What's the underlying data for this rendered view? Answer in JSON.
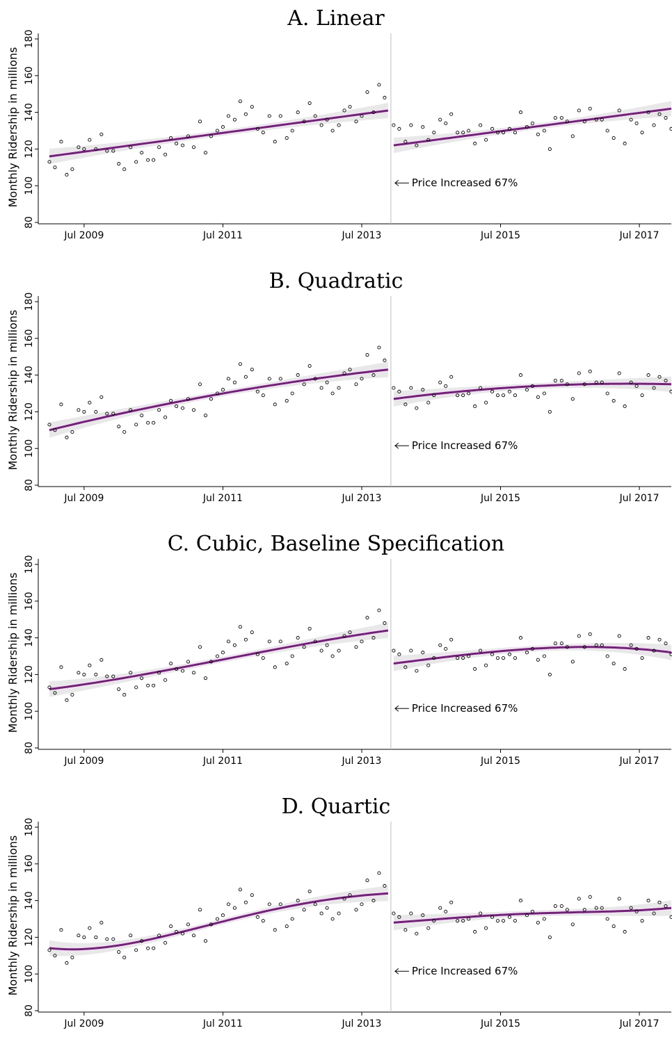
{
  "figure": {
    "ylabel": "Monthly Ridership in millions",
    "annotation": "Price Increased 67%",
    "yticks": [
      80,
      100,
      120,
      140,
      160,
      180
    ],
    "xticks": [
      {
        "x": 2009.5,
        "label": "Jul 2009"
      },
      {
        "x": 2011.5,
        "label": "Jul 2011"
      },
      {
        "x": 2013.5,
        "label": "Jul 2013"
      },
      {
        "x": 2015.5,
        "label": "Jul 2015"
      },
      {
        "x": 2017.5,
        "label": "Jul 2017"
      }
    ],
    "colors": {
      "fit": "#7b1b82",
      "ci": "#e8e8e8",
      "points": "#000000",
      "cutoff": "#bdbdbd"
    }
  },
  "chart_data": [
    {
      "type": "scatter",
      "title": "A. Linear",
      "ylabel": "Monthly Ridership in millions",
      "ylim": [
        80,
        180
      ],
      "xlim": [
        2008.92,
        2017.96
      ],
      "cutoff_x": 2013.92,
      "annotation": "Price Increased 67%",
      "fit_degree": 1,
      "fit_pre": [
        {
          "x": 2009.0,
          "y": 116
        },
        {
          "x": 2013.88,
          "y": 141
        }
      ],
      "fit_post": [
        {
          "x": 2013.96,
          "y": 122
        },
        {
          "x": 2017.96,
          "y": 142
        }
      ]
    },
    {
      "type": "scatter",
      "title": "B. Quadratic",
      "ylabel": "Monthly Ridership in millions",
      "ylim": [
        80,
        180
      ],
      "xlim": [
        2008.92,
        2017.96
      ],
      "cutoff_x": 2013.92,
      "annotation": "Price Increased 67%",
      "fit_degree": 2,
      "fit_pre": [
        {
          "x": 2009.0,
          "y": 110
        },
        {
          "x": 2011.5,
          "y": 130
        },
        {
          "x": 2013.88,
          "y": 143
        }
      ],
      "fit_post": [
        {
          "x": 2013.96,
          "y": 127
        },
        {
          "x": 2016.0,
          "y": 134
        },
        {
          "x": 2017.96,
          "y": 135
        }
      ]
    },
    {
      "type": "scatter",
      "title": "C. Cubic, Baseline Specification",
      "ylabel": "Monthly Ridership in millions",
      "ylim": [
        80,
        180
      ],
      "xlim": [
        2008.92,
        2017.96
      ],
      "cutoff_x": 2013.92,
      "annotation": "Price Increased 67%",
      "fit_degree": 3,
      "fit_pre": [
        {
          "x": 2009.0,
          "y": 112
        },
        {
          "x": 2010.5,
          "y": 121
        },
        {
          "x": 2012.3,
          "y": 134
        },
        {
          "x": 2013.88,
          "y": 144
        }
      ],
      "fit_post": [
        {
          "x": 2013.96,
          "y": 126
        },
        {
          "x": 2015.3,
          "y": 132
        },
        {
          "x": 2016.8,
          "y": 135
        },
        {
          "x": 2017.96,
          "y": 132
        }
      ]
    },
    {
      "type": "scatter",
      "title": "D. Quartic",
      "ylabel": "Monthly Ridership in millions",
      "ylim": [
        80,
        180
      ],
      "xlim": [
        2008.92,
        2017.96
      ],
      "cutoff_x": 2013.92,
      "annotation": "Price Increased 67%",
      "fit_degree": 4,
      "fit_pre": [
        {
          "x": 2009.0,
          "y": 114
        },
        {
          "x": 2010.0,
          "y": 116
        },
        {
          "x": 2011.0,
          "y": 123
        },
        {
          "x": 2012.0,
          "y": 134
        },
        {
          "x": 2013.0,
          "y": 140
        },
        {
          "x": 2013.88,
          "y": 144
        }
      ],
      "fit_post": [
        {
          "x": 2013.96,
          "y": 128
        },
        {
          "x": 2015.0,
          "y": 131
        },
        {
          "x": 2016.0,
          "y": 133
        },
        {
          "x": 2017.0,
          "y": 134
        },
        {
          "x": 2017.96,
          "y": 136
        }
      ]
    }
  ],
  "scatter_points": [
    {
      "x": 2009.0,
      "y": 113
    },
    {
      "x": 2009.08,
      "y": 110
    },
    {
      "x": 2009.17,
      "y": 124
    },
    {
      "x": 2009.25,
      "y": 106
    },
    {
      "x": 2009.33,
      "y": 109
    },
    {
      "x": 2009.42,
      "y": 121
    },
    {
      "x": 2009.5,
      "y": 120
    },
    {
      "x": 2009.58,
      "y": 125
    },
    {
      "x": 2009.67,
      "y": 120
    },
    {
      "x": 2009.75,
      "y": 128
    },
    {
      "x": 2009.83,
      "y": 119
    },
    {
      "x": 2009.92,
      "y": 119
    },
    {
      "x": 2010.0,
      "y": 112
    },
    {
      "x": 2010.08,
      "y": 109
    },
    {
      "x": 2010.17,
      "y": 121
    },
    {
      "x": 2010.25,
      "y": 113
    },
    {
      "x": 2010.33,
      "y": 118
    },
    {
      "x": 2010.42,
      "y": 114
    },
    {
      "x": 2010.5,
      "y": 114
    },
    {
      "x": 2010.58,
      "y": 121
    },
    {
      "x": 2010.67,
      "y": 117
    },
    {
      "x": 2010.75,
      "y": 126
    },
    {
      "x": 2010.83,
      "y": 123
    },
    {
      "x": 2010.92,
      "y": 122
    },
    {
      "x": 2011.0,
      "y": 127
    },
    {
      "x": 2011.08,
      "y": 121
    },
    {
      "x": 2011.17,
      "y": 135
    },
    {
      "x": 2011.25,
      "y": 118
    },
    {
      "x": 2011.33,
      "y": 127
    },
    {
      "x": 2011.42,
      "y": 130
    },
    {
      "x": 2011.5,
      "y": 132
    },
    {
      "x": 2011.58,
      "y": 138
    },
    {
      "x": 2011.67,
      "y": 136
    },
    {
      "x": 2011.75,
      "y": 146
    },
    {
      "x": 2011.83,
      "y": 139
    },
    {
      "x": 2011.92,
      "y": 143
    },
    {
      "x": 2012.0,
      "y": 131
    },
    {
      "x": 2012.08,
      "y": 129
    },
    {
      "x": 2012.17,
      "y": 138
    },
    {
      "x": 2012.25,
      "y": 124
    },
    {
      "x": 2012.33,
      "y": 138
    },
    {
      "x": 2012.42,
      "y": 126
    },
    {
      "x": 2012.5,
      "y": 130
    },
    {
      "x": 2012.58,
      "y": 140
    },
    {
      "x": 2012.67,
      "y": 135
    },
    {
      "x": 2012.75,
      "y": 145
    },
    {
      "x": 2012.83,
      "y": 138
    },
    {
      "x": 2012.92,
      "y": 133
    },
    {
      "x": 2013.0,
      "y": 136
    },
    {
      "x": 2013.08,
      "y": 130
    },
    {
      "x": 2013.17,
      "y": 133
    },
    {
      "x": 2013.25,
      "y": 141
    },
    {
      "x": 2013.33,
      "y": 143
    },
    {
      "x": 2013.42,
      "y": 135
    },
    {
      "x": 2013.5,
      "y": 138
    },
    {
      "x": 2013.58,
      "y": 151
    },
    {
      "x": 2013.67,
      "y": 140
    },
    {
      "x": 2013.75,
      "y": 155
    },
    {
      "x": 2013.83,
      "y": 148
    },
    {
      "x": 2013.96,
      "y": 133
    },
    {
      "x": 2014.04,
      "y": 131
    },
    {
      "x": 2014.13,
      "y": 124
    },
    {
      "x": 2014.21,
      "y": 133
    },
    {
      "x": 2014.29,
      "y": 122
    },
    {
      "x": 2014.38,
      "y": 132
    },
    {
      "x": 2014.46,
      "y": 125
    },
    {
      "x": 2014.54,
      "y": 129
    },
    {
      "x": 2014.63,
      "y": 136
    },
    {
      "x": 2014.71,
      "y": 134
    },
    {
      "x": 2014.79,
      "y": 139
    },
    {
      "x": 2014.88,
      "y": 129
    },
    {
      "x": 2014.96,
      "y": 129
    },
    {
      "x": 2015.04,
      "y": 130
    },
    {
      "x": 2015.13,
      "y": 123
    },
    {
      "x": 2015.21,
      "y": 133
    },
    {
      "x": 2015.29,
      "y": 125
    },
    {
      "x": 2015.38,
      "y": 131
    },
    {
      "x": 2015.46,
      "y": 129
    },
    {
      "x": 2015.54,
      "y": 129
    },
    {
      "x": 2015.63,
      "y": 131
    },
    {
      "x": 2015.71,
      "y": 129
    },
    {
      "x": 2015.79,
      "y": 140
    },
    {
      "x": 2015.88,
      "y": 132
    },
    {
      "x": 2015.96,
      "y": 134
    },
    {
      "x": 2016.04,
      "y": 128
    },
    {
      "x": 2016.13,
      "y": 130
    },
    {
      "x": 2016.21,
      "y": 120
    },
    {
      "x": 2016.29,
      "y": 137
    },
    {
      "x": 2016.38,
      "y": 137
    },
    {
      "x": 2016.46,
      "y": 135
    },
    {
      "x": 2016.54,
      "y": 127
    },
    {
      "x": 2016.63,
      "y": 141
    },
    {
      "x": 2016.71,
      "y": 135
    },
    {
      "x": 2016.79,
      "y": 142
    },
    {
      "x": 2016.88,
      "y": 136
    },
    {
      "x": 2016.96,
      "y": 136
    },
    {
      "x": 2017.04,
      "y": 130
    },
    {
      "x": 2017.13,
      "y": 126
    },
    {
      "x": 2017.21,
      "y": 141
    },
    {
      "x": 2017.29,
      "y": 123
    },
    {
      "x": 2017.38,
      "y": 136
    },
    {
      "x": 2017.46,
      "y": 134
    },
    {
      "x": 2017.54,
      "y": 129
    },
    {
      "x": 2017.63,
      "y": 140
    },
    {
      "x": 2017.71,
      "y": 133
    },
    {
      "x": 2017.79,
      "y": 139
    },
    {
      "x": 2017.88,
      "y": 137
    },
    {
      "x": 2017.96,
      "y": 131
    }
  ]
}
